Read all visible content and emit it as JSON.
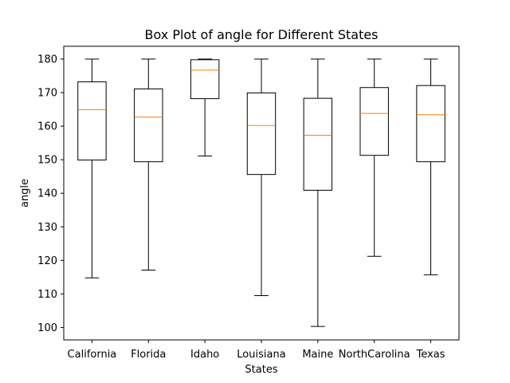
{
  "chart_data": {
    "type": "box",
    "title": "Box Plot of angle for Different States",
    "xlabel": "States",
    "ylabel": "angle",
    "ylim": [
      96.3,
      183.8
    ],
    "yticks": [
      100,
      110,
      120,
      130,
      140,
      150,
      160,
      170,
      180
    ],
    "grid": false,
    "categories": [
      "California",
      "Florida",
      "Idaho",
      "Louisiana",
      "Maine",
      "NorthCarolina",
      "Texas"
    ],
    "boxes": [
      {
        "whisker_low": 114.8,
        "q1": 149.9,
        "median": 164.9,
        "q3": 173.2,
        "whisker_high": 180.0
      },
      {
        "whisker_low": 117.1,
        "q1": 149.4,
        "median": 162.7,
        "q3": 171.1,
        "whisker_high": 180.0
      },
      {
        "whisker_low": 151.1,
        "q1": 168.2,
        "median": 176.7,
        "q3": 179.8,
        "whisker_high": 180.0
      },
      {
        "whisker_low": 109.5,
        "q1": 145.6,
        "median": 160.2,
        "q3": 169.9,
        "whisker_high": 180.0
      },
      {
        "whisker_low": 100.3,
        "q1": 140.9,
        "median": 157.3,
        "q3": 168.3,
        "whisker_high": 180.0
      },
      {
        "whisker_low": 121.2,
        "q1": 151.3,
        "median": 163.8,
        "q3": 171.5,
        "whisker_high": 180.0
      },
      {
        "whisker_low": 115.7,
        "q1": 149.4,
        "median": 163.4,
        "q3": 172.1,
        "whisker_high": 180.0
      }
    ],
    "colors": {
      "box": "#000000",
      "median": "#ff7f0e"
    }
  }
}
